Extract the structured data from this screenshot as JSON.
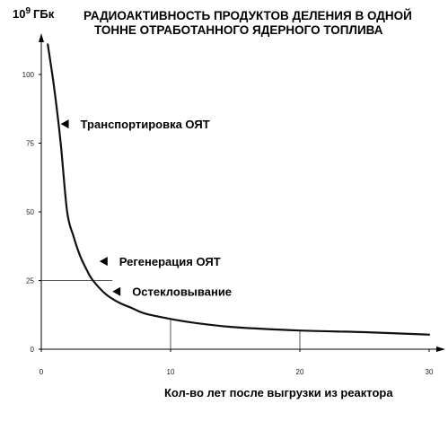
{
  "chart_data": {
    "type": "line",
    "title_line1": "РАДИОАКТИВНОСТЬ ПРОДУКТОВ  ДЕЛЕНИЯ В ОДНОЙ",
    "title_line2": "ТОННЕ ОТРАБОТАННОГО ЯДЕРНОГО ТОПЛИВА",
    "ylabel_prefix": "10",
    "ylabel_exp": "9",
    "ylabel_unit": "ГБк",
    "xlabel": "Кол-во лет после выгрузки из  реактора",
    "xlim": [
      0,
      30
    ],
    "ylim": [
      0,
      110
    ],
    "x_ticks": [
      {
        "value": 0,
        "label": "0"
      },
      {
        "value": 10,
        "label": "10"
      },
      {
        "value": 20,
        "label": "20"
      },
      {
        "value": 30,
        "label": "30"
      }
    ],
    "y_ticks": [
      {
        "value": 0,
        "label": "0"
      },
      {
        "value": 25,
        "label": "25"
      },
      {
        "value": 50,
        "label": "50"
      },
      {
        "value": 75,
        "label": "75"
      },
      {
        "value": 100,
        "label": "100"
      }
    ],
    "grid": false,
    "legend": "none",
    "series": [
      {
        "x": [
          0.5,
          1,
          1.5,
          2,
          2.5,
          3,
          3.5,
          4,
          5,
          6,
          7,
          8,
          10,
          12,
          15,
          20,
          25,
          30
        ],
        "y": [
          111,
          95,
          75,
          50,
          41,
          34,
          29,
          25,
          20,
          17,
          15,
          13,
          11,
          9.5,
          8,
          6.8,
          6.2,
          5.3
        ]
      }
    ],
    "annotations": [
      {
        "text": "Транспортировка ОЯТ",
        "x": 1.5,
        "y": 82
      },
      {
        "text": "Регенерация ОЯТ",
        "x": 4.5,
        "y": 32
      },
      {
        "text": "Остекловывание",
        "x": 5.5,
        "y": 21
      }
    ],
    "reference_lines": [
      {
        "type": "h",
        "y": 25,
        "x_to": 5.5
      },
      {
        "type": "v",
        "x": 10,
        "y_to": 11
      },
      {
        "type": "v",
        "x": 20,
        "y_to": 6.8
      }
    ]
  }
}
